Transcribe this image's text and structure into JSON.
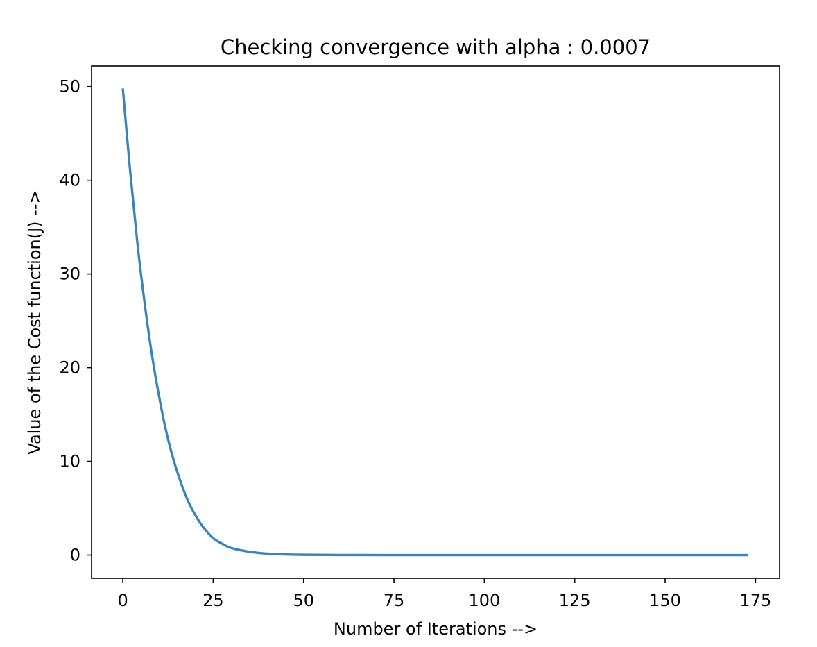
{
  "chart_data": {
    "type": "line",
    "title": "Checking convergence with alpha : 0.0007",
    "xlabel": "Number of Iterations -->",
    "ylabel": "Value of the Cost function(J) -->",
    "xlim": [
      -8.65,
      181.65
    ],
    "ylim": [
      -2.48,
      52.2
    ],
    "xticks": [
      0,
      25,
      50,
      75,
      100,
      125,
      150,
      175
    ],
    "yticks": [
      0,
      10,
      20,
      30,
      40,
      50
    ],
    "xtick_labels": [
      "0",
      "25",
      "50",
      "75",
      "100",
      "125",
      "150",
      "175"
    ],
    "ytick_labels": [
      "0",
      "10",
      "20",
      "30",
      "40",
      "50"
    ],
    "grid": false,
    "series": [
      {
        "color": "#3b84bb",
        "x": [
          0,
          2,
          4,
          6,
          8,
          10,
          12,
          14,
          16,
          18,
          20,
          22,
          25,
          28,
          30,
          35,
          40,
          45,
          50,
          60,
          80,
          100,
          125,
          150,
          173
        ],
        "y": [
          49.8,
          41.1,
          33.4,
          27.0,
          21.5,
          17.0,
          13.2,
          10.2,
          7.8,
          5.8,
          4.3,
          3.1,
          1.8,
          1.1,
          0.75,
          0.35,
          0.15,
          0.07,
          0.03,
          0.005,
          0.0,
          0.0,
          0.0,
          0.0,
          0.0
        ]
      }
    ]
  }
}
